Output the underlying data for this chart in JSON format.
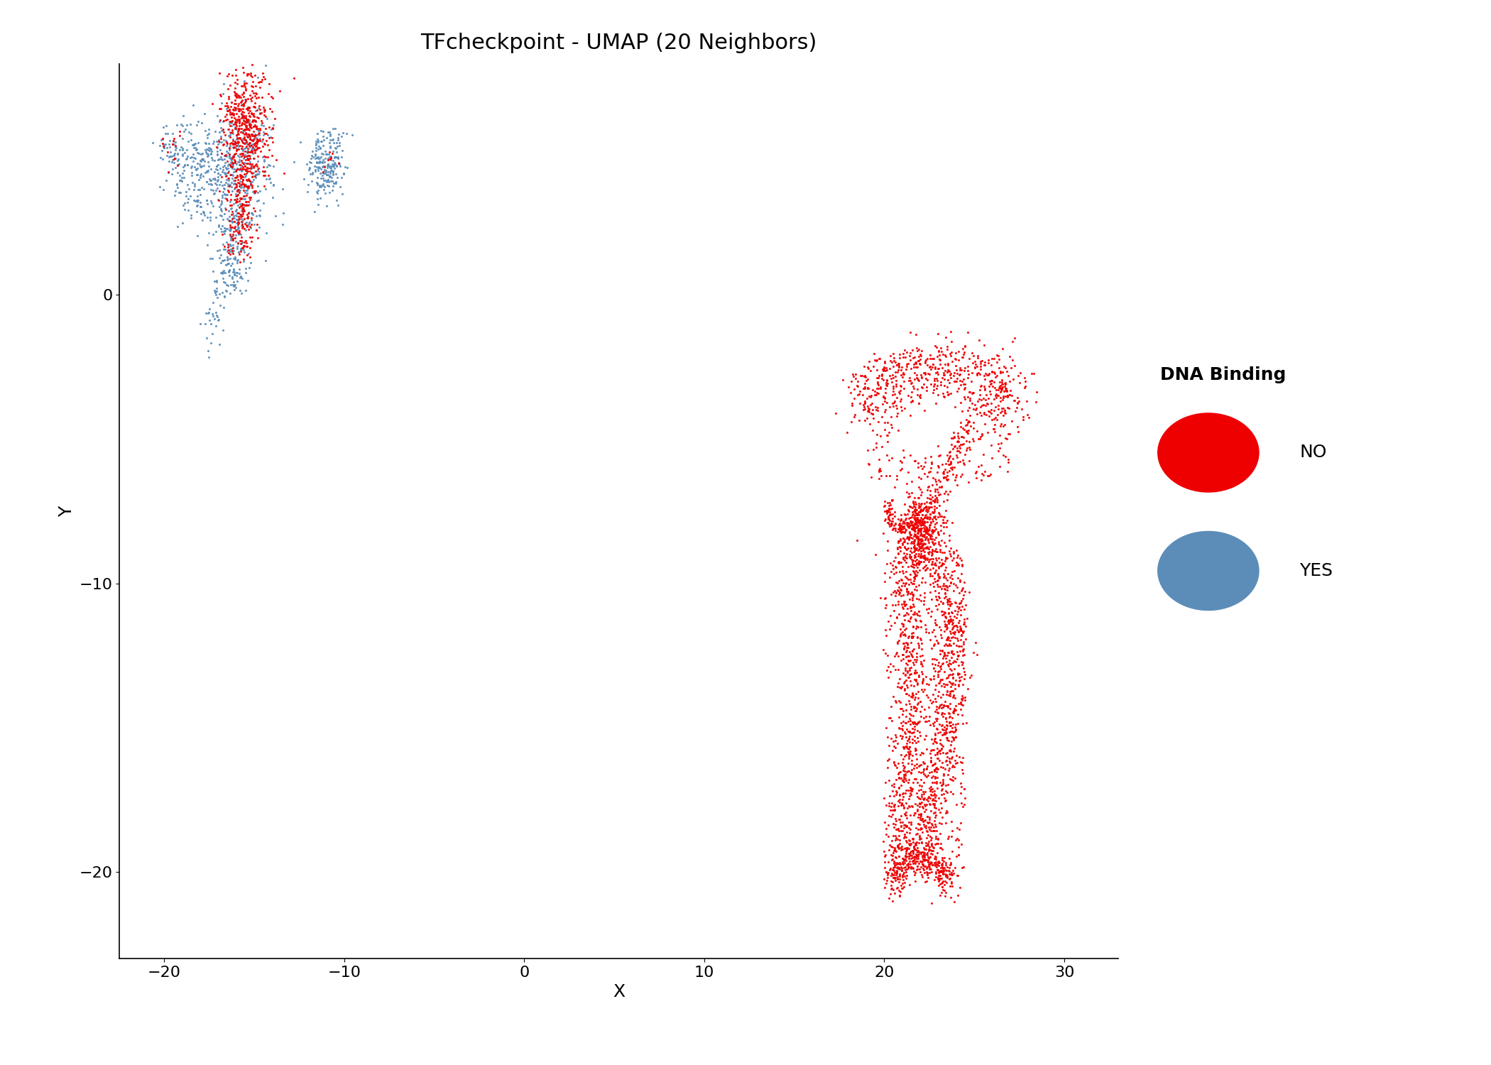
{
  "title": "TFcheckpoint - UMAP (20 Neighbors)",
  "xlabel": "X",
  "ylabel": "Y",
  "xlim": [
    -22.5,
    33
  ],
  "ylim": [
    -23,
    8
  ],
  "xticks": [
    -20,
    -10,
    0,
    10,
    20,
    30
  ],
  "yticks": [
    -20,
    -10,
    0
  ],
  "color_no": "#EE0000",
  "color_yes": "#5B8DB8",
  "legend_title": "DNA Binding",
  "point_size": 5,
  "alpha": 0.9,
  "title_fontsize": 22,
  "label_fontsize": 18,
  "tick_fontsize": 16,
  "legend_fontsize": 18,
  "seed": 42,
  "background_color": "#FFFFFF"
}
